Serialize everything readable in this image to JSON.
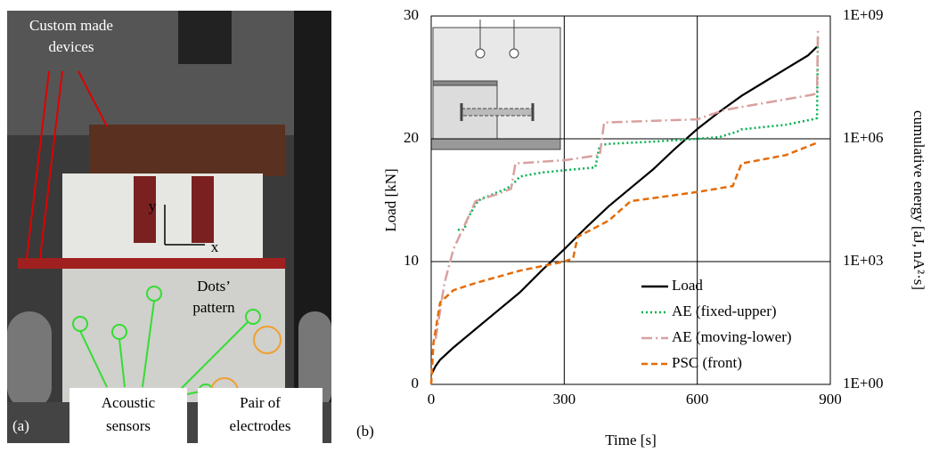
{
  "photo": {
    "panel_label": "(a)",
    "devices_label": [
      "Custom made",
      "devices"
    ],
    "dots_label": [
      "Dots’",
      "pattern"
    ],
    "sensors_label": [
      "Acoustic",
      "sensors"
    ],
    "electrodes_label": [
      "Pair of",
      "electrodes"
    ],
    "axis_y": "y",
    "axis_x": "x"
  },
  "chart_data": {
    "type": "line",
    "panel_label": "(b)",
    "xlabel": "Time [s]",
    "ylabel": "Load [kN]",
    "y2label": "cumulative energy [aJ, nA²·s]",
    "xlim": [
      0,
      900
    ],
    "xticks": [
      0,
      300,
      600,
      900
    ],
    "ylim": [
      0,
      30
    ],
    "yticks": [
      0,
      10,
      20,
      30
    ],
    "y2lim": [
      1,
      1000000000
    ],
    "y2scale": "log",
    "y2ticks": [
      {
        "value": 1,
        "label": "1E+00"
      },
      {
        "value": 1000,
        "label": "1E+03"
      },
      {
        "value": 1000000,
        "label": "1E+06"
      },
      {
        "value": 1000000000,
        "label": "1E+09"
      }
    ],
    "grid": true,
    "legend": "lower right",
    "series": [
      {
        "name": "Load",
        "color": "#000000",
        "style": "solid",
        "axis": "y",
        "x": [
          0,
          10,
          20,
          50,
          100,
          150,
          200,
          250,
          300,
          350,
          400,
          450,
          500,
          550,
          600,
          650,
          700,
          750,
          800,
          850,
          870
        ],
        "values": [
          0.8,
          1.5,
          2,
          3,
          4.5,
          6,
          7.5,
          9.3,
          11,
          12.8,
          14.5,
          16,
          17.5,
          19.2,
          20.8,
          22.2,
          23.5,
          24.6,
          25.7,
          26.8,
          27.5
        ]
      },
      {
        "name": "AE (fixed-upper)",
        "color": "#00b050",
        "style": "dotted",
        "axis": "y2",
        "x": [
          60,
          75,
          80,
          95,
          105,
          115,
          130,
          150,
          170,
          185,
          200,
          250,
          300,
          370,
          380,
          400,
          500,
          600,
          650,
          690,
          700,
          800,
          860,
          870,
          872
        ],
        "values": [
          6000,
          6000,
          10000,
          20000,
          30000,
          35000,
          40000,
          50000,
          60000,
          80000,
          120000,
          150000,
          170000,
          200000,
          700000,
          750000,
          850000,
          1000000,
          1100000,
          1500000,
          1700000,
          2200000,
          3000000,
          3200000,
          300000000
        ]
      },
      {
        "name": "AE (moving-lower)",
        "color": "#d9a0a0",
        "style": "dashdot",
        "axis": "y2",
        "x": [
          10,
          30,
          50,
          80,
          100,
          150,
          180,
          190,
          300,
          380,
          390,
          600,
          660,
          700,
          860,
          870,
          872
        ],
        "values": [
          13,
          300,
          2000,
          10000,
          30000,
          45000,
          60000,
          250000,
          300000,
          400000,
          2500000,
          3000000,
          5000000,
          6000000,
          12000000,
          13000000,
          500000000
        ]
      },
      {
        "name": "PSC (front)",
        "color": "#e36c09",
        "style": "dashed",
        "axis": "y2",
        "x": [
          0,
          5,
          20,
          50,
          100,
          200,
          300,
          320,
          330,
          400,
          450,
          600,
          680,
          700,
          800,
          870
        ],
        "values": [
          1,
          10,
          100,
          200,
          300,
          600,
          1000,
          1200,
          4000,
          10000,
          30000,
          50000,
          70000,
          250000,
          400000,
          800000
        ]
      }
    ]
  }
}
